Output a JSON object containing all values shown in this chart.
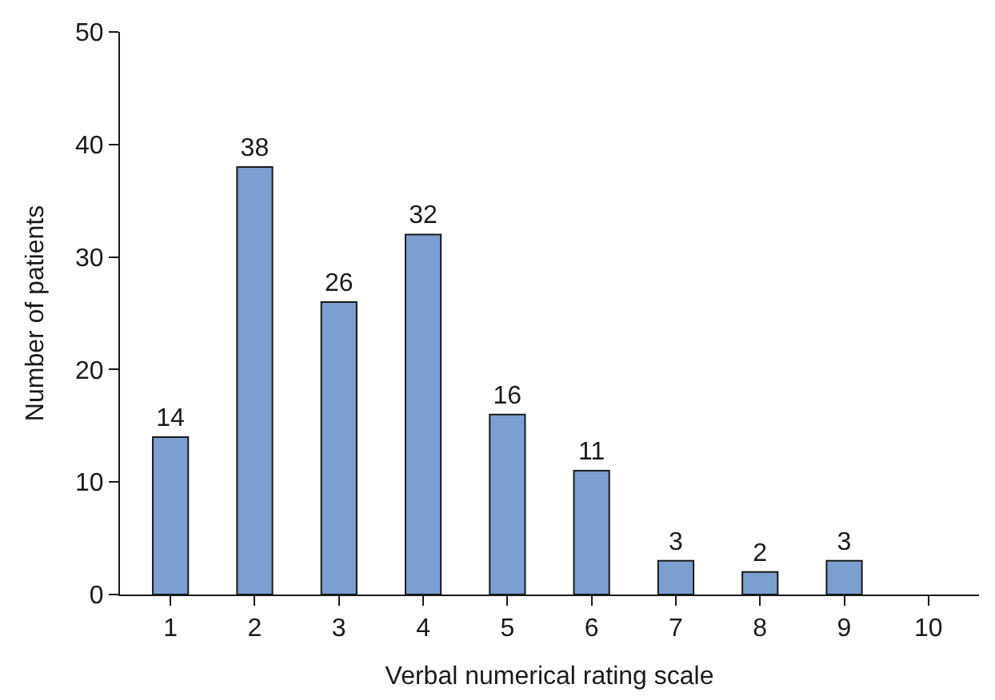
{
  "chart_data": {
    "type": "bar",
    "xlabel": "Verbal numerical rating scale",
    "ylabel": "Number of patients",
    "categories": [
      "1",
      "2",
      "3",
      "4",
      "5",
      "6",
      "7",
      "8",
      "9",
      "10"
    ],
    "values": [
      14,
      38,
      26,
      32,
      16,
      11,
      3,
      2,
      3,
      null
    ],
    "color": "#7a9fd0",
    "ylim": [
      0,
      50
    ],
    "yticks": [
      0,
      10,
      20,
      30,
      40,
      50
    ],
    "data_labels": true
  }
}
